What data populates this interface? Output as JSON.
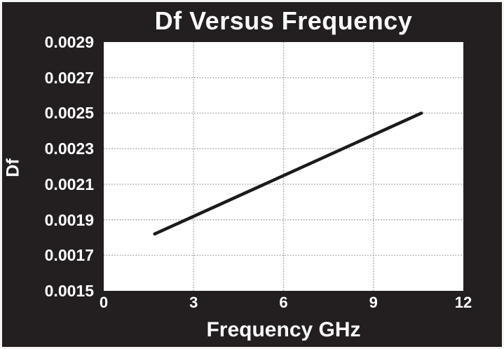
{
  "chart_data": {
    "type": "line",
    "title": "Df Versus Frequency",
    "xlabel": "Frequency GHz",
    "ylabel": "Df",
    "xlim": [
      0,
      12
    ],
    "ylim": [
      0.0015,
      0.0029
    ],
    "x_ticks": [
      {
        "label": "0",
        "value": 0
      },
      {
        "label": "3",
        "value": 3
      },
      {
        "label": "6",
        "value": 6
      },
      {
        "label": "9",
        "value": 9
      },
      {
        "label": "12",
        "value": 12
      }
    ],
    "y_ticks": [
      {
        "label": "0.0029",
        "value": 0.0029
      },
      {
        "label": "0.0027",
        "value": 0.0027
      },
      {
        "label": "0.0025",
        "value": 0.0025
      },
      {
        "label": "0.0023",
        "value": 0.0023
      },
      {
        "label": "0.0021",
        "value": 0.0021
      },
      {
        "label": "0.0019",
        "value": 0.0019
      },
      {
        "label": "0.0017",
        "value": 0.0017
      },
      {
        "label": "0.0015",
        "value": 0.0015
      }
    ],
    "grid": "dotted, interior horizontal and vertical gridlines, on",
    "legend": "none",
    "series": [
      {
        "name": "Df",
        "color": "#1d1a1b",
        "points": [
          [
            1.7,
            0.00182
          ],
          [
            10.6,
            0.0025
          ]
        ]
      }
    ],
    "colors": {
      "background": "#231f20",
      "plot_background": "#ffffff",
      "text": "#ffffff",
      "gridline": "#8c8c8c",
      "outer_border": "#f5f5f3"
    }
  }
}
